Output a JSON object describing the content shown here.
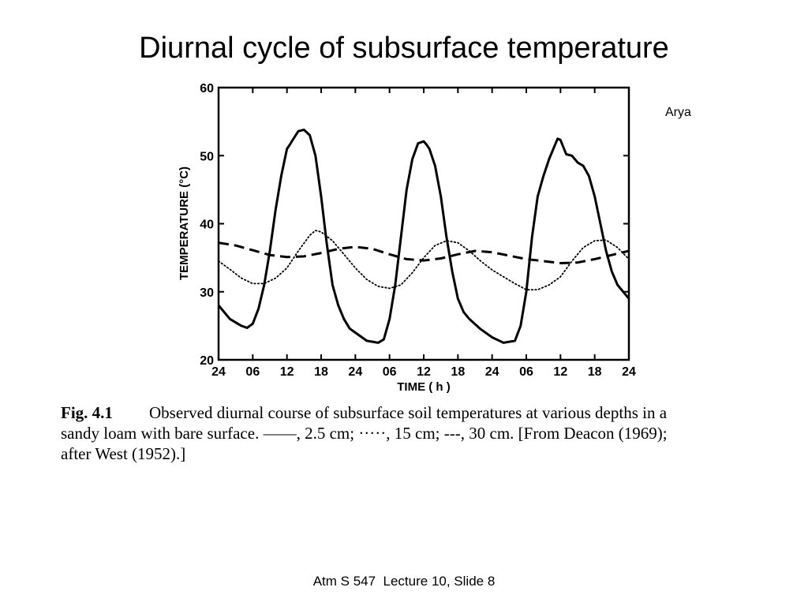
{
  "slide": {
    "title": "Diurnal cycle of subsurface temperature",
    "credit": "Arya",
    "footer": "Atm S 547  Lecture 10, Slide 8"
  },
  "caption": {
    "label": "Fig. 4.1",
    "line1": "Observed diurnal course of subsurface soil temperatures at various depths in a",
    "line2": "sandy loam with bare surface. ——, 2.5 cm; ·····, 15 cm; ---, 30 cm. [From Deacon (1969);",
    "line3": "after West (1952).]"
  },
  "chart_data": {
    "type": "line",
    "xlabel": "TIME ( h )",
    "ylabel": "TEMPERATURE (°C)",
    "x_range": [
      0,
      72
    ],
    "ylim": [
      20,
      60
    ],
    "x_ticks": [
      0,
      6,
      12,
      18,
      24,
      30,
      36,
      42,
      48,
      54,
      60,
      66,
      72
    ],
    "x_tick_labels": [
      "24",
      "06",
      "12",
      "18",
      "24",
      "06",
      "12",
      "18",
      "24",
      "06",
      "12",
      "18",
      "24"
    ],
    "y_ticks": [
      20,
      30,
      40,
      50,
      60
    ],
    "y_tick_labels": [
      "20",
      "30",
      "40",
      "50",
      "60"
    ],
    "grid": false,
    "series": [
      {
        "name": "2.5 cm",
        "style": "solid",
        "x": [
          0,
          2,
          4,
          5,
          6,
          7,
          8,
          9,
          10,
          11,
          12,
          12.5,
          13,
          14,
          15,
          16,
          17,
          18,
          19,
          20,
          21,
          22,
          23,
          24,
          26,
          28,
          29,
          30,
          31,
          32,
          33,
          34,
          35,
          36,
          36.5,
          37,
          38,
          39,
          40,
          41,
          42,
          43,
          44,
          46,
          48,
          50,
          52,
          53,
          54,
          55,
          56,
          57,
          58,
          59,
          59.5,
          60,
          61,
          62,
          63,
          64,
          65,
          66,
          67,
          68,
          69,
          70,
          71,
          72
        ],
        "y": [
          28,
          26,
          25,
          24.7,
          25.3,
          27.5,
          31,
          36,
          42,
          47,
          51,
          51.6,
          52.3,
          53.6,
          53.8,
          53,
          50,
          44,
          37,
          31,
          28,
          26,
          24.6,
          24,
          22.8,
          22.5,
          23,
          26,
          31,
          38,
          45,
          49.5,
          51.8,
          52.1,
          51.6,
          51,
          48.5,
          44,
          38,
          33,
          29,
          27,
          26,
          24.5,
          23.3,
          22.5,
          22.8,
          25,
          30,
          38,
          44,
          47,
          49.5,
          51.5,
          52.5,
          52.3,
          50.2,
          50,
          49,
          48.5,
          47,
          44,
          40,
          36,
          33,
          31,
          30,
          29
        ]
      },
      {
        "name": "15 cm",
        "style": "dotted",
        "x": [
          0,
          2,
          4,
          6,
          8,
          10,
          12,
          14,
          16,
          17,
          18,
          20,
          22,
          24,
          26,
          28,
          30,
          32,
          34,
          36,
          38,
          40,
          42,
          44,
          46,
          48,
          50,
          52,
          54,
          56,
          58,
          60,
          62,
          64,
          66,
          68,
          70,
          72
        ],
        "y": [
          34.5,
          33.3,
          32,
          31.2,
          31.2,
          32,
          33.5,
          36,
          38.3,
          39,
          38.8,
          37.5,
          35.5,
          33.5,
          31.8,
          30.8,
          30.5,
          31,
          32.8,
          35,
          36.8,
          37.5,
          37.2,
          36,
          34.5,
          33.2,
          32.2,
          31.2,
          30.3,
          30.3,
          31,
          32.2,
          34.5,
          36.5,
          37.5,
          37.6,
          36.5,
          34.8
        ]
      },
      {
        "name": "30 cm",
        "style": "dashed",
        "x": [
          0,
          3,
          6,
          9,
          12,
          15,
          18,
          21,
          24,
          27,
          30,
          33,
          36,
          39,
          42,
          45,
          48,
          51,
          54,
          57,
          60,
          63,
          66,
          69,
          72
        ],
        "y": [
          37.2,
          36.8,
          36.1,
          35.4,
          35.1,
          35.2,
          35.7,
          36.3,
          36.6,
          36.3,
          35.5,
          34.8,
          34.6,
          34.9,
          35.5,
          36.0,
          35.8,
          35.3,
          34.8,
          34.5,
          34.2,
          34.3,
          34.8,
          35.4,
          36.0
        ]
      }
    ]
  }
}
